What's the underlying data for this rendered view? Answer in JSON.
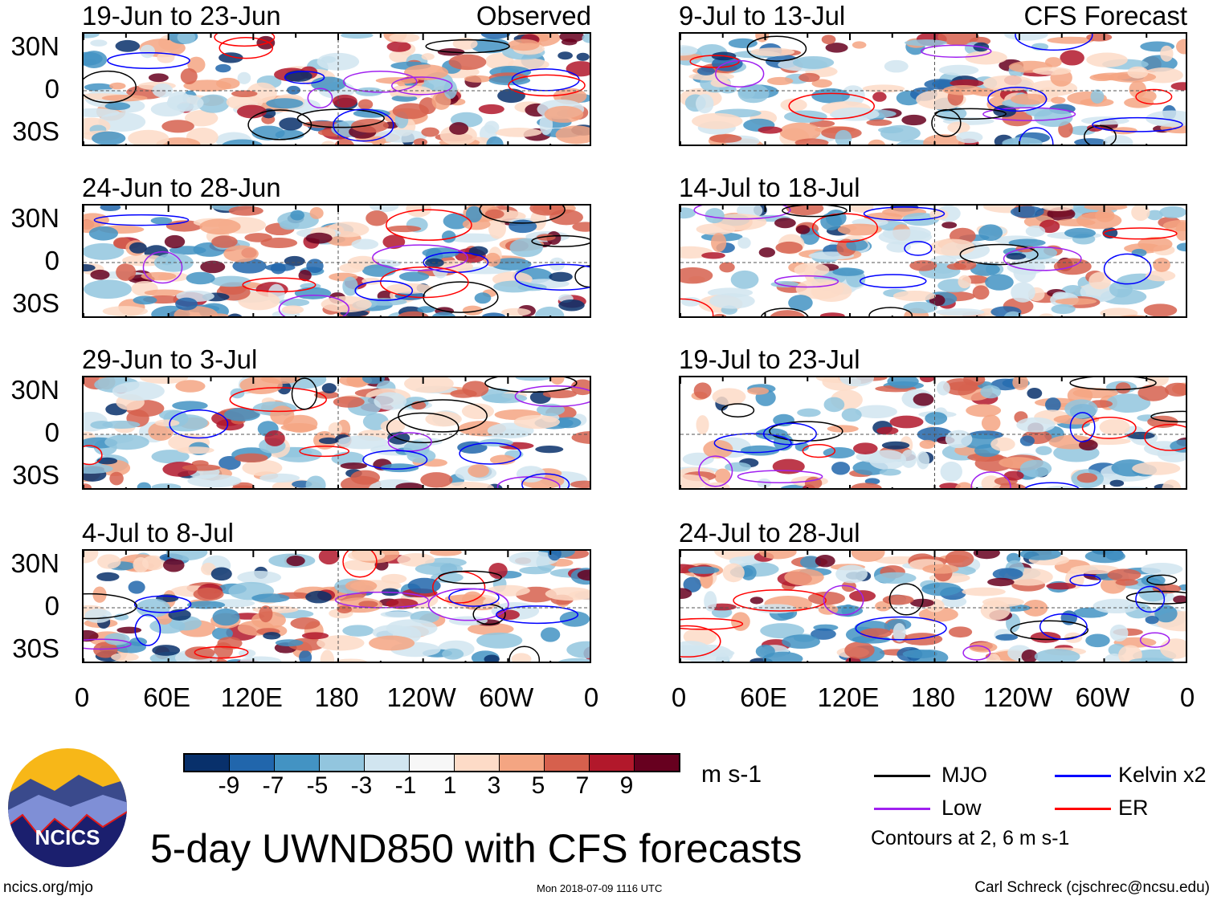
{
  "figure_title": "5-day UWND850 with CFS forecasts",
  "left_column_label": "Observed",
  "right_column_label": "CFS Forecast",
  "panels_left": [
    "19-Jun to 23-Jun",
    "24-Jun to 28-Jun",
    "29-Jun to 3-Jul",
    "4-Jul to 8-Jul"
  ],
  "panels_right": [
    "9-Jul to 13-Jul",
    "14-Jul to 18-Jul",
    "19-Jul to 23-Jul",
    "24-Jul to 28-Jul"
  ],
  "lat_labels": [
    "30N",
    "0",
    "30S"
  ],
  "lon_labels": [
    "0",
    "60E",
    "120E",
    "180",
    "120W",
    "60W",
    "0"
  ],
  "colorbar": {
    "unit": "m s-1",
    "labels": [
      "-9",
      "-7",
      "-5",
      "-3",
      "-1",
      "1",
      "3",
      "5",
      "7",
      "9"
    ],
    "colors": [
      "#08306b",
      "#2166ac",
      "#4393c3",
      "#92c5de",
      "#d1e5f0",
      "#f7f7f7",
      "#fddbc7",
      "#f4a582",
      "#d6604d",
      "#b2182b",
      "#67001f"
    ]
  },
  "legend": {
    "items": [
      {
        "label": "MJO",
        "color": "#000000"
      },
      {
        "label": "Kelvin x2",
        "color": "#0000ff"
      },
      {
        "label": "Low",
        "color": "#a020f0"
      },
      {
        "label": "ER",
        "color": "#ff0000"
      }
    ],
    "note": "Contours at 2, 6 m s-1"
  },
  "logo_text": "NCICS",
  "footer": {
    "url": "ncics.org/mjo",
    "timestamp": "Mon 2018-07-09 1116 UTC",
    "author": "Carl Schreck (cjschrec@ncsu.edu)"
  }
}
